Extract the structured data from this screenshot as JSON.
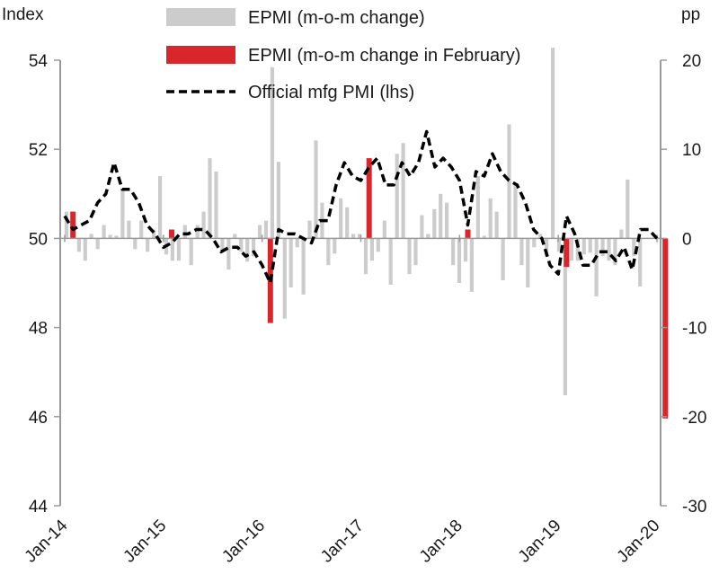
{
  "chart_data": {
    "type": "bar",
    "left_axis_label": "Index",
    "right_axis_label": "pp",
    "left_ylim": [
      44,
      54
    ],
    "left_yticks": [
      "44",
      "46",
      "48",
      "50",
      "52",
      "54"
    ],
    "right_ylim": [
      -30,
      20
    ],
    "right_yticks": [
      "-30",
      "-20",
      "-10",
      "0",
      "10",
      "20"
    ],
    "x_tick_labels": [
      "Jan-14",
      "Jan-15",
      "Jan-16",
      "Jan-17",
      "Jan-18",
      "Jan-19",
      "Jan-20"
    ],
    "legend": {
      "placement": "top-center",
      "entries": [
        {
          "label": "EPMI (m-o-m change)",
          "style": "bar",
          "color": "#cccccc"
        },
        {
          "label": "EPMI (m-o-m change in February)",
          "style": "bar",
          "color": "#d9262c"
        },
        {
          "label": "Official mfg PMI (lhs)",
          "style": "dashed-line",
          "color": "#000000"
        }
      ]
    },
    "series": [
      {
        "name": "EPMI (m-o-m change)",
        "axis": "right",
        "values": [
          3.0,
          0.2,
          -1.5,
          -2.5,
          0.5,
          -1.2,
          1.5,
          0.4,
          0.3,
          5.6,
          2.0,
          -1.2,
          2.0,
          -1.5,
          1.0,
          7.0,
          -1.8,
          -2.5,
          -2.5,
          1.5,
          -3.0,
          1.5,
          3.0,
          9.0,
          7.5,
          -1.5,
          -3.5,
          0.5,
          -1.5,
          -2.6,
          -2.0,
          1.5,
          2.0,
          19.2,
          8.6,
          -9.0,
          -5.5,
          -1.0,
          -6.3,
          2.0,
          11.0,
          4.0,
          -3.0,
          -1.7,
          4.5,
          3.5,
          0.5,
          0.5,
          -4.0,
          -2.5,
          -1.5,
          2.0,
          -5.2,
          9.5,
          10.7,
          -4.0,
          -3.0,
          2.6,
          0.5,
          3.3,
          5.0,
          4.0,
          -3.0,
          -5.0,
          -2.6,
          -6.0,
          7.0,
          0.3,
          4.5,
          3.0,
          -4.7,
          12.8,
          6.0,
          -3.0,
          -5.5,
          -1.0,
          0.5,
          -2.0,
          21.4,
          -1.5,
          -17.6,
          -2.5,
          -2.5,
          -1.8,
          -1.6,
          -6.5,
          -2.0,
          -2.5,
          -3.0,
          1.0,
          6.6,
          -2.0,
          -5.4,
          0.0,
          0.0,
          0.0
        ]
      },
      {
        "name": "EPMI (m-o-m change in February)",
        "axis": "right",
        "values": [
          3.0,
          1.0,
          -9.5,
          9.0,
          1.0,
          -3.2,
          -20.2
        ]
      },
      {
        "name": "Official mfg PMI (lhs)",
        "axis": "left",
        "values": [
          50.5,
          50.2,
          50.3,
          50.4,
          50.8,
          51.0,
          51.7,
          51.1,
          51.1,
          50.8,
          50.3,
          50.1,
          49.8,
          49.9,
          50.1,
          50.1,
          50.2,
          50.2,
          50.0,
          49.7,
          49.8,
          49.8,
          49.6,
          49.7,
          49.4,
          49.0,
          50.2,
          50.1,
          50.1,
          50.0,
          49.9,
          50.4,
          50.4,
          51.2,
          51.7,
          51.4,
          51.3,
          51.6,
          51.8,
          51.2,
          51.2,
          51.7,
          51.4,
          51.7,
          52.4,
          51.6,
          51.8,
          51.6,
          51.3,
          50.3,
          51.5,
          51.4,
          51.9,
          51.5,
          51.3,
          51.2,
          50.8,
          50.2,
          50.0,
          49.4,
          49.2,
          50.5,
          50.1,
          49.4,
          49.4,
          49.7,
          49.7,
          49.5,
          49.8,
          49.3,
          50.2,
          50.2,
          50.0
        ]
      }
    ]
  }
}
